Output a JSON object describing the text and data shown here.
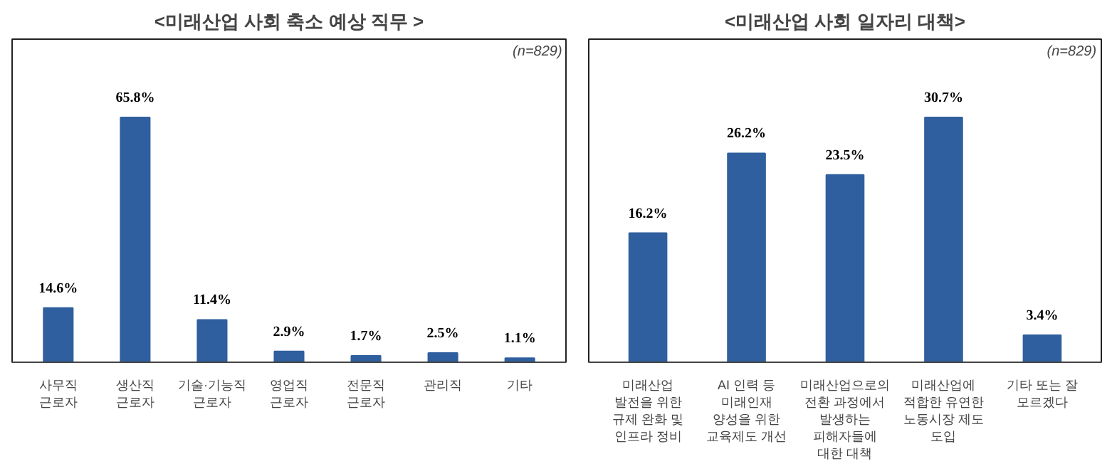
{
  "chart_data": [
    {
      "type": "bar",
      "title": "<미래산업 사회 축소 예상 직무 >",
      "categories": [
        "사무직 근로자",
        "생산직 근로자",
        "기술·기능직 근로자",
        "영업직 근로자",
        "전문직 근로자",
        "관리직",
        "기타"
      ],
      "values": [
        14.6,
        65.8,
        11.4,
        2.9,
        1.7,
        2.5,
        1.1
      ],
      "value_labels": [
        "14.6%",
        "65.8%",
        "11.4%",
        "2.9%",
        "1.7%",
        "2.5%",
        "1.1%"
      ],
      "color": "#2f5f9e",
      "annotations": [
        "(n=829)"
      ],
      "grid": false
    },
    {
      "type": "bar",
      "title": "<미래산업 사회 일자리 대책>",
      "categories": [
        "미래산업 발전을 위한 규제 완화 및 인프라 정비",
        "AI 인력 등 미래인재 양성을 위한 교육제도 개선",
        "미래산업으로의 전환 과정에서 발생하는 피해자들에 대한 대책",
        "미래산업에 적합한 유연한 노동시장 제도 도입",
        "기타 또는 잘 모르겠다"
      ],
      "values": [
        16.2,
        26.2,
        23.5,
        30.7,
        3.4
      ],
      "value_labels": [
        "16.2%",
        "26.2%",
        "23.5%",
        "30.7%",
        "3.4%"
      ],
      "color": "#2f5f9e",
      "annotations": [
        "(n=829)"
      ],
      "grid": false
    }
  ]
}
